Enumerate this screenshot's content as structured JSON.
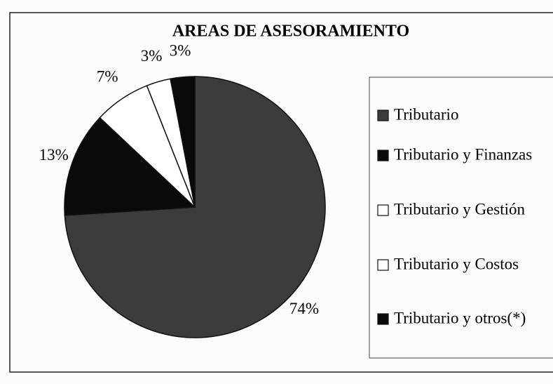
{
  "chart_data": {
    "type": "pie",
    "title": "AREAS DE ASESORAMIENTO",
    "categories": [
      "Tributario",
      "Tributario y Finanzas",
      "Tributario y Gestión",
      "Tributario y Costos",
      "Tributario y otros(*)"
    ],
    "values": [
      74,
      13,
      7,
      3,
      3
    ],
    "value_labels": [
      "74%",
      "13%",
      "7%",
      "3%",
      "3%"
    ],
    "colors": [
      "#3c3c3c",
      "#0a0a0a",
      "#ffffff",
      "#ffffff",
      "#0a0a0a"
    ],
    "legend": "right"
  }
}
